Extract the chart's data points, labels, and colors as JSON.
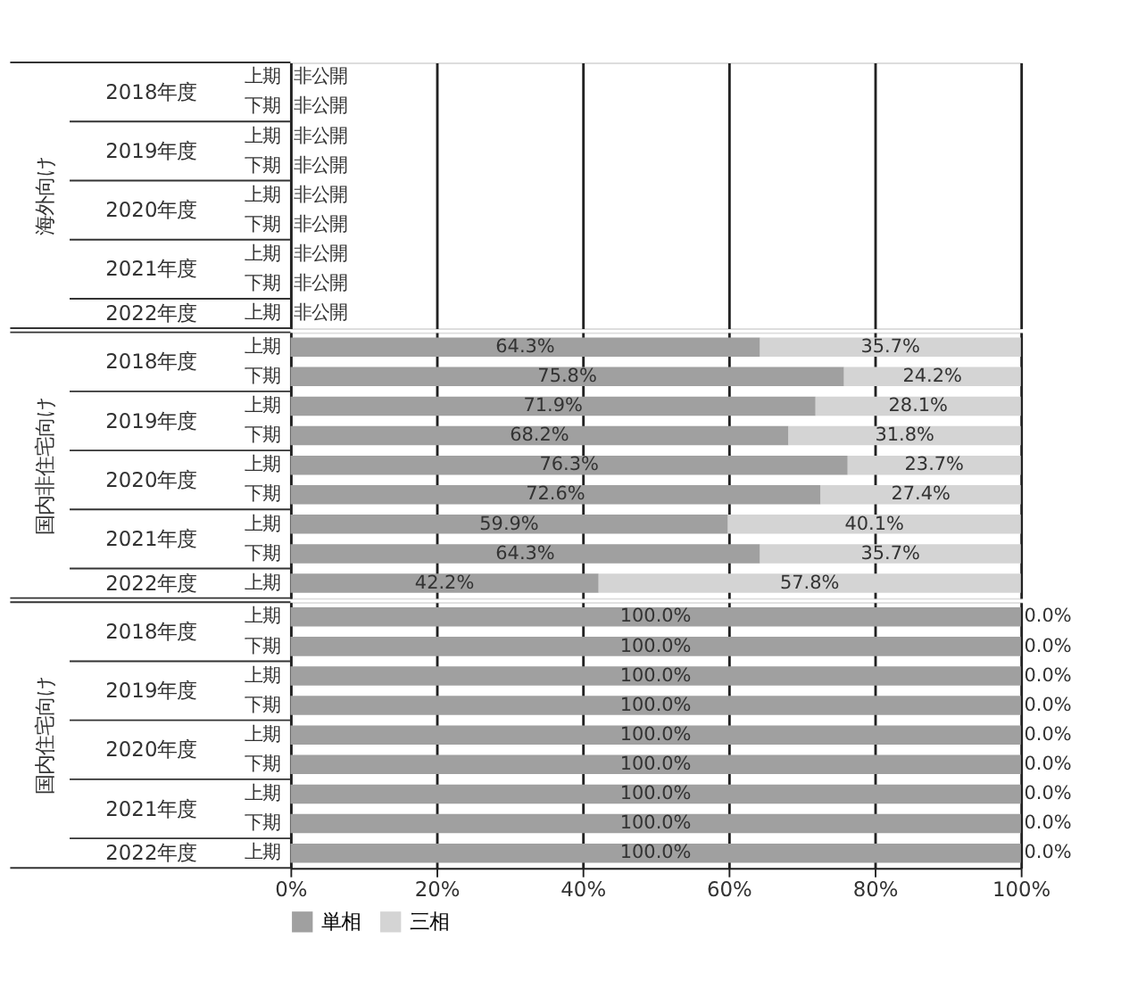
{
  "chart_data": [
    {
      "type": "bar",
      "orientation": "horizontal",
      "stacked": true,
      "ylabel": "海外向け",
      "categories": [
        "上期",
        "下期",
        "上期",
        "下期",
        "上期",
        "下期",
        "上期",
        "下期",
        "上期"
      ],
      "annotations": [
        "2018年度",
        "2019年度",
        "2020年度",
        "2021年度",
        "2022年度"
      ],
      "series": [
        {
          "color": "#a0a0a0",
          "values": [
            null,
            null,
            null,
            null,
            null,
            null,
            null,
            null,
            null
          ],
          "value_labels": [
            "非公開",
            "非公開",
            "非公開",
            "非公開",
            "非公開",
            "非公開",
            "非公開",
            "非公開",
            "非公開"
          ]
        }
      ],
      "xlim": [
        0,
        100
      ],
      "xticks": [
        {
          "value": 0,
          "label": null
        },
        {
          "value": 20,
          "label": null
        },
        {
          "value": 40,
          "label": null
        },
        {
          "value": 60,
          "label": null
        },
        {
          "value": 80,
          "label": null
        },
        {
          "value": 100,
          "label": null
        }
      ],
      "grid": "x",
      "tick_labels": "y"
    },
    {
      "type": "bar",
      "orientation": "horizontal",
      "stacked": true,
      "ylabel": "国内非住宅向け",
      "categories": [
        "上期",
        "下期",
        "上期",
        "下期",
        "上期",
        "下期",
        "上期",
        "下期",
        "上期"
      ],
      "annotations": [
        "2018年度",
        "2019年度",
        "2020年度",
        "2021年度",
        "2022年度"
      ],
      "series": [
        {
          "color": "#a0a0a0",
          "values": [
            64.3,
            75.8,
            71.9,
            68.2,
            76.3,
            72.6,
            59.9,
            64.3,
            42.2
          ],
          "value_labels": [
            "64.3%",
            "75.8%",
            "71.9%",
            "68.2%",
            "76.3%",
            "72.6%",
            "59.9%",
            "64.3%",
            "42.2%"
          ]
        },
        {
          "color": "#d4d4d4",
          "values": [
            35.7,
            24.2,
            28.1,
            31.8,
            23.7,
            27.4,
            40.1,
            35.7,
            57.8
          ],
          "value_labels": [
            "35.7%",
            "24.2%",
            "28.1%",
            "31.8%",
            "23.7%",
            "27.4%",
            "40.1%",
            "35.7%",
            "57.8%"
          ]
        }
      ],
      "xlim": [
        0,
        100
      ],
      "xticks": [
        {
          "value": 0,
          "label": null
        },
        {
          "value": 20,
          "label": null
        },
        {
          "value": 40,
          "label": null
        },
        {
          "value": 60,
          "label": null
        },
        {
          "value": 80,
          "label": null
        },
        {
          "value": 100,
          "label": null
        }
      ],
      "grid": "x",
      "tick_labels": "y"
    },
    {
      "type": "bar",
      "orientation": "horizontal",
      "stacked": true,
      "ylabel": "国内住宅向け",
      "categories": [
        "上期",
        "下期",
        "上期",
        "下期",
        "上期",
        "下期",
        "上期",
        "下期",
        "上期"
      ],
      "annotations": [
        "2018年度",
        "2019年度",
        "2020年度",
        "2021年度",
        "2022年度"
      ],
      "series": [
        {
          "name": "単相",
          "color": "#a0a0a0",
          "values": [
            100,
            100,
            100,
            100,
            100,
            100,
            100,
            100,
            100
          ],
          "value_labels": [
            "100.0%",
            "100.0%",
            "100.0%",
            "100.0%",
            "100.0%",
            "100.0%",
            "100.0%",
            "100.0%",
            "100.0%"
          ]
        },
        {
          "name": "三相",
          "color": "#d4d4d4",
          "values": [
            0,
            0,
            0,
            0,
            0,
            0,
            0,
            0,
            0
          ],
          "value_labels": [
            "0.0%",
            "0.0%",
            "0.0%",
            "0.0%",
            "0.0%",
            "0.0%",
            "0.0%",
            "0.0%",
            "0.0%"
          ]
        }
      ],
      "xlim": [
        0,
        100
      ],
      "xticks": [
        {
          "value": 0,
          "label": "0%"
        },
        {
          "value": 20,
          "label": "20%"
        },
        {
          "value": 40,
          "label": "40%"
        },
        {
          "value": 60,
          "label": "60%"
        },
        {
          "value": 80,
          "label": "80%"
        },
        {
          "value": 100,
          "label": "100%"
        }
      ],
      "grid": "x",
      "legend": "bottom"
    }
  ]
}
